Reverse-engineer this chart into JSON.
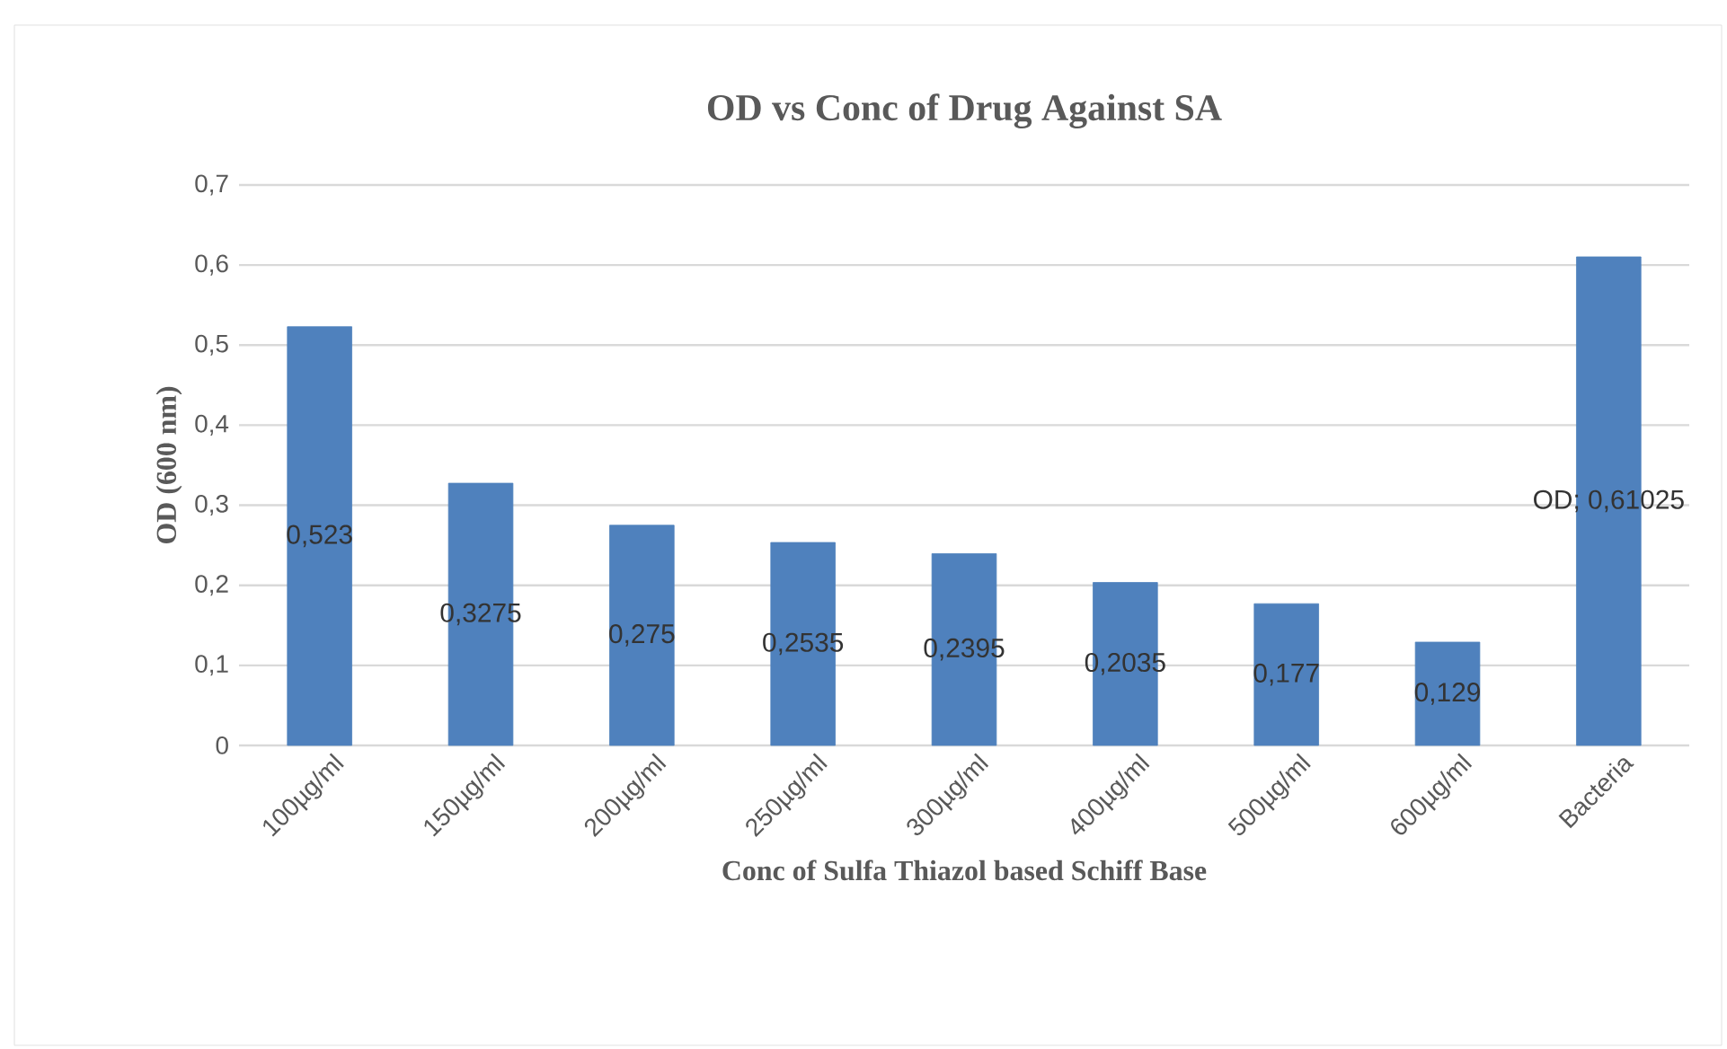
{
  "chart_data": {
    "type": "bar",
    "title": "OD vs Conc of Drug Against SA",
    "xlabel": "Conc of Sulfa Thiazol based Schiff Base",
    "ylabel": "OD (600 nm)",
    "categories": [
      "100µg/ml",
      "150µg/ml",
      "200µg/ml",
      "250µg/ml",
      "300µg/ml",
      "400µg/ml",
      "500µg/ml",
      "600µg/ml",
      "Bacteria"
    ],
    "values": [
      0.523,
      0.3275,
      0.275,
      0.2535,
      0.2395,
      0.2035,
      0.177,
      0.129,
      0.61025
    ],
    "value_labels": [
      "0,523",
      "0,3275",
      "0,275",
      "0,2535",
      "0,2395",
      "0,2035",
      "0,177",
      "0,129",
      "OD; 0,61025"
    ],
    "color": "#4f81bd",
    "ylim": [
      0,
      0.7
    ],
    "yticks": [
      0,
      {
        "value": 0.1,
        "label": "0,1"
      },
      {
        "value": 0.2,
        "label": "0,2"
      },
      {
        "value": 0.3,
        "label": "0,3"
      },
      {
        "value": 0.4,
        "label": "0,4"
      },
      {
        "value": 0.5,
        "label": "0,5"
      },
      {
        "value": 0.6,
        "label": "0,6"
      },
      {
        "value": 0.7,
        "label": "0,7"
      }
    ],
    "grid": "y"
  }
}
